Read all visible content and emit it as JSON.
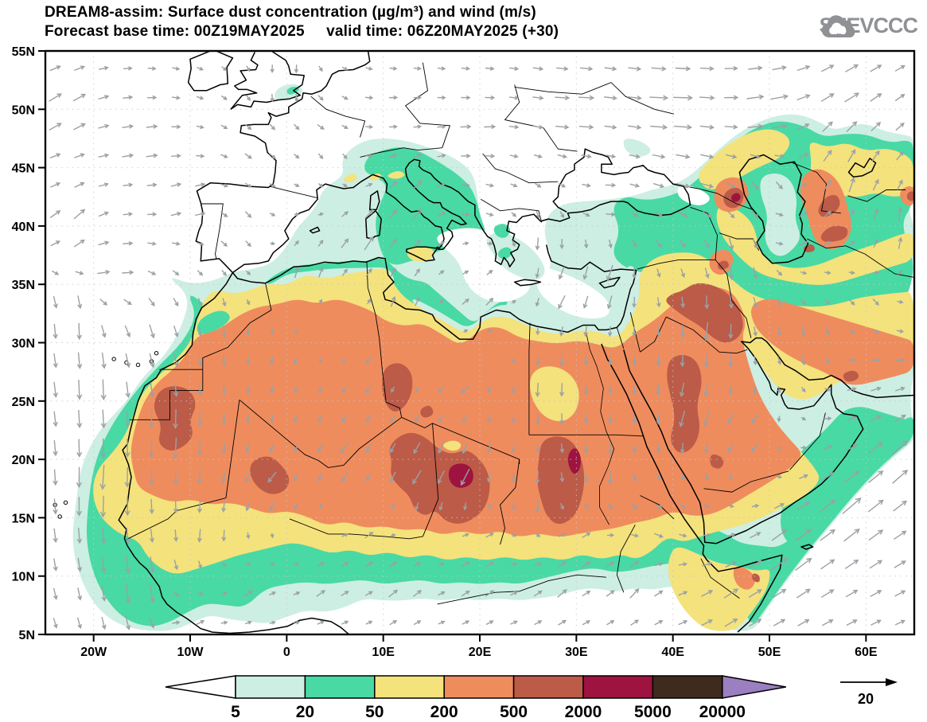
{
  "header": {
    "title_line1": "DREAM8-assim: Surface dust concentration (µg/m³) and wind (m/s)",
    "title_line2": "Forecast base time: 00Z19MAY2025     valid time: 06Z20MAY2025 (+30)",
    "logo_text": "SEEVCCC"
  },
  "map": {
    "lat_ticks": [
      "55N",
      "50N",
      "45N",
      "40N",
      "35N",
      "30N",
      "25N",
      "20N",
      "15N",
      "10N",
      "5N"
    ],
    "lon_ticks": [
      "20W",
      "10W",
      "0",
      "10E",
      "20E",
      "30E",
      "40E",
      "50E",
      "60E"
    ]
  },
  "legend": {
    "tick_labels": [
      "5",
      "20",
      "50",
      "200",
      "500",
      "2000",
      "5000",
      "20000"
    ],
    "colors": [
      "#cdeee3",
      "#49d9a4",
      "#f4e27c",
      "#ef8c5e",
      "#bc5b47",
      "#9e1340",
      "#3f2a1e"
    ],
    "under_arrow_color": "#ffffff",
    "over_arrow_color": "#9b7fc1"
  },
  "wind_reference": {
    "label": "20"
  },
  "chart_data": {
    "type": "contour_map",
    "model": "DREAM8-assim",
    "variable": "Surface dust concentration",
    "variable_units": "µg/m³",
    "overlay": "wind vectors",
    "overlay_units": "m/s",
    "forecast_base_time": "00Z19MAY2025",
    "valid_time": "06Z20MAY2025",
    "lead_hours": 30,
    "extent": {
      "lon_min": -25,
      "lon_max": 65,
      "lat_min": 5,
      "lat_max": 55
    },
    "lat_tick_labels": [
      "55N",
      "50N",
      "45N",
      "40N",
      "35N",
      "30N",
      "25N",
      "20N",
      "15N",
      "10N",
      "5N"
    ],
    "lon_tick_labels": [
      "20W",
      "10W",
      "0",
      "10E",
      "20E",
      "30E",
      "40E",
      "50E",
      "60E"
    ],
    "contour_levels_ug_m3": [
      5,
      20,
      50,
      200,
      500,
      2000,
      5000,
      20000
    ],
    "level_band_colors": [
      "#cdeee3",
      "#49d9a4",
      "#f4e27c",
      "#ef8c5e",
      "#bc5b47",
      "#9e1340",
      "#3f2a1e"
    ],
    "below_min_color": "#ffffff",
    "above_max_color": "#9b7fc1",
    "wind_reference_ms": 20,
    "notable_features": [
      "Dust maximum 2000-5000 µg/m³ over the Bodélé region of Chad (~18E, 18.5N)",
      "Broad 500-2000 µg/m³ areas over Western Sahara/Mauritania, Mali, Niger/Chad, Sudan, western Saudi Arabia, Iraq and east of the Caspian Sea",
      "200-500 µg/m³ plume across most of the central Sahara and interior Arabia",
      "50-200 µg/m³ band along the Saharan margins, Atlantic plume off Senegal and around the Caspian",
      "20-50 µg/m³ across the Sahel, central Mediterranean, Italy, eastern Turkey, Caucasus and the Somali-jet region",
      "Winds: NE trades over the Sahara turning SW, monsoon southwesterlies over the Sahel, strong Somali jet in the SE corner"
    ]
  }
}
